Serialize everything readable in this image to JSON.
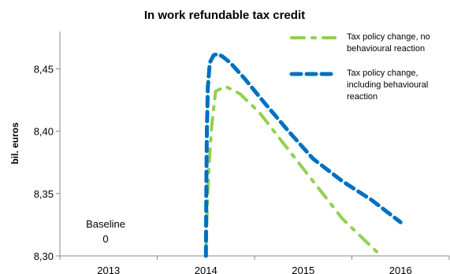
{
  "chart_data": {
    "type": "line",
    "title": "In work refundable tax credit",
    "ylabel": "bil. euros",
    "xlabel": "",
    "x_ticks": [
      "2013",
      "2014",
      "2015",
      "2016"
    ],
    "y_ticks": [
      "8,30",
      "8,35",
      "8,40",
      "8,45"
    ],
    "ylim": [
      8.3,
      8.48
    ],
    "xlim": [
      2012.5,
      2016.5
    ],
    "grid": false,
    "legend_position": "top-right",
    "annotation": {
      "line1": "Baseline",
      "line2": "0"
    },
    "series": [
      {
        "name": "Tax policy change, no behavioural reaction",
        "name_lines": [
          "Tax policy change, no",
          "behavioural reaction"
        ],
        "color": "#92d050",
        "style": "dash-dot",
        "x": [
          2014.0,
          2014.01,
          2014.03,
          2014.06,
          2014.1,
          2014.2,
          2014.35,
          2014.55,
          2014.8,
          2015.1,
          2015.4,
          2015.6,
          2015.8
        ],
        "y": [
          8.3,
          8.33,
          8.37,
          8.405,
          8.432,
          8.436,
          8.43,
          8.415,
          8.39,
          8.36,
          8.33,
          8.315,
          8.3
        ]
      },
      {
        "name": "Tax policy change, including behavioural reaction",
        "name_lines": [
          "Tax policy change,",
          "including behavioural",
          "reaction"
        ],
        "color": "#0070c0",
        "style": "dash",
        "x": [
          2014.0,
          2014.005,
          2014.01,
          2014.02,
          2014.04,
          2014.08,
          2014.12,
          2014.17,
          2014.25,
          2014.4,
          2014.6,
          2014.85,
          2015.1,
          2015.4,
          2015.7,
          2016.0
        ],
        "y": [
          8.3,
          8.36,
          8.4,
          8.435,
          8.455,
          8.461,
          8.462,
          8.46,
          8.455,
          8.442,
          8.423,
          8.4,
          8.378,
          8.36,
          8.345,
          8.327
        ]
      }
    ]
  }
}
